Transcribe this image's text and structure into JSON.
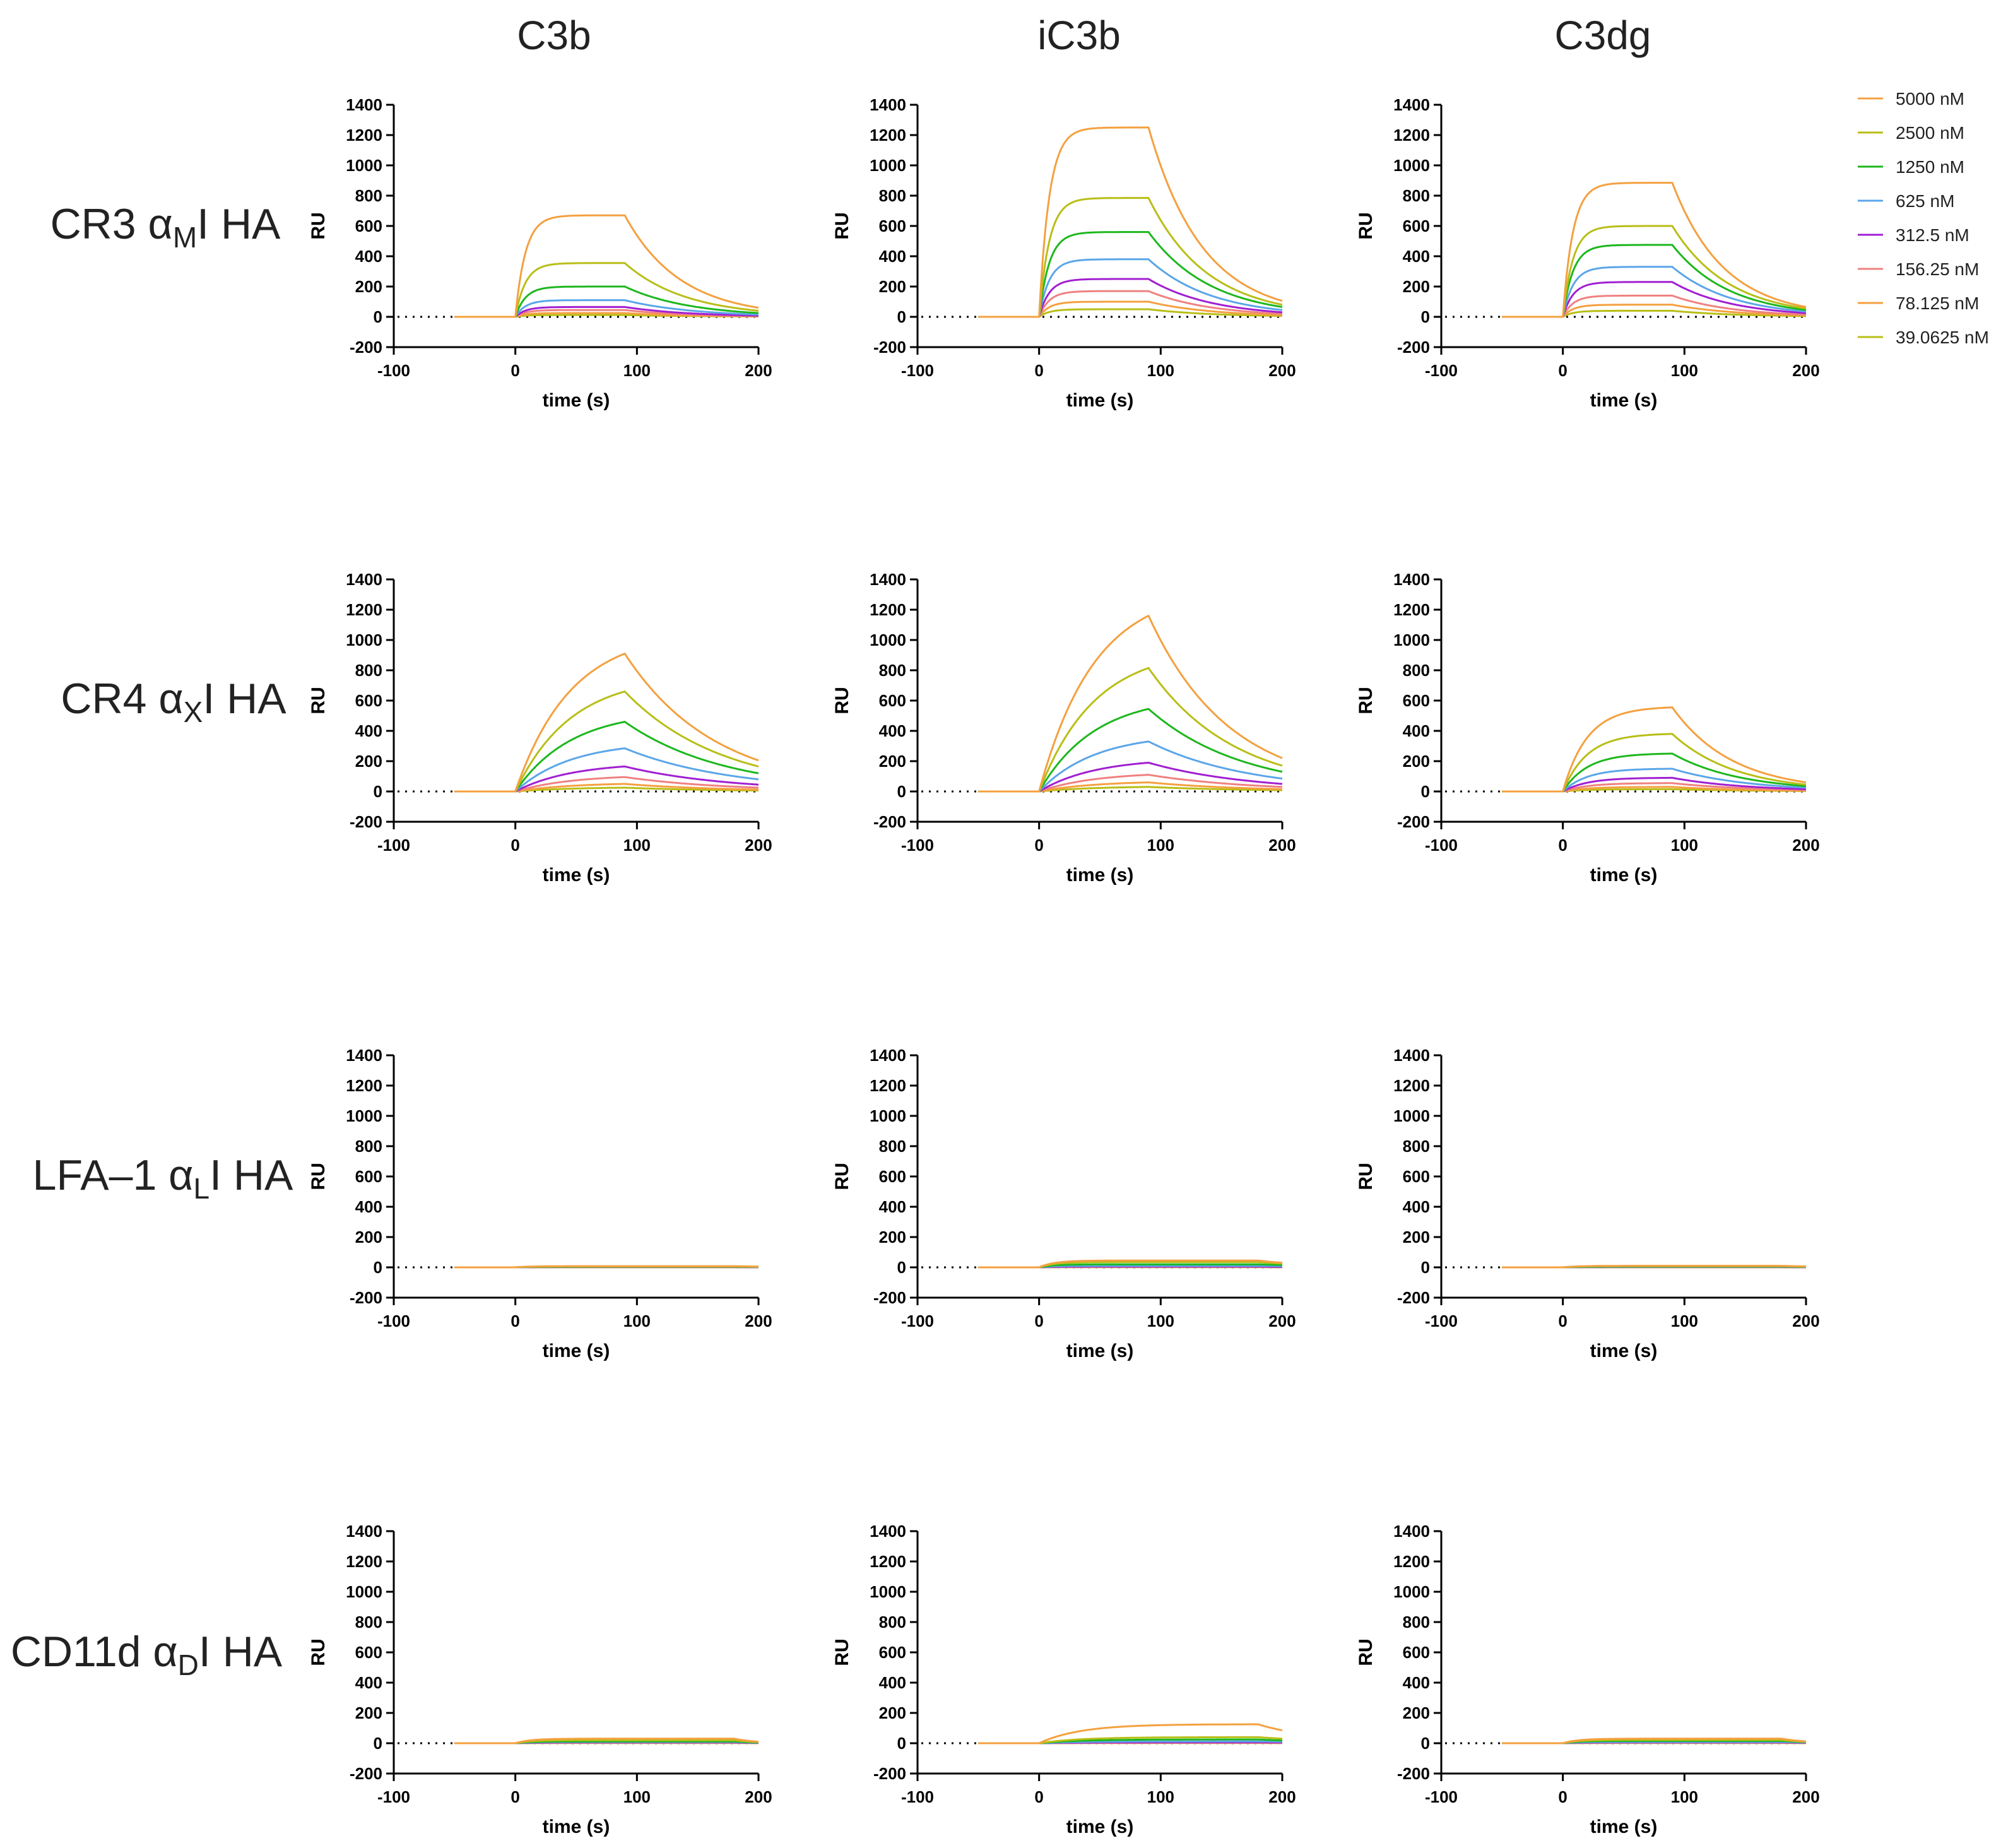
{
  "figure": {
    "col_titles": [
      "C3b",
      "iC3b",
      "C3dg"
    ],
    "row_labels": [
      {
        "prefix": "CR3 ",
        "alpha": "α",
        "sub": "M",
        "suffix": "I HA"
      },
      {
        "prefix": "CR4 ",
        "alpha": "α",
        "sub": "X",
        "suffix": "I HA"
      },
      {
        "prefix": "LFA–1 ",
        "alpha": "α",
        "sub": "L",
        "suffix": "I HA"
      },
      {
        "prefix": "CD11d ",
        "alpha": "α",
        "sub": "D",
        "suffix": "I HA"
      }
    ],
    "legend": [
      {
        "label": "5000 nM",
        "color": "#F4A03F"
      },
      {
        "label": "2500 nM",
        "color": "#B8BE16"
      },
      {
        "label": "1250 nM",
        "color": "#1DB71D"
      },
      {
        "label": "625 nM",
        "color": "#5AA6E8"
      },
      {
        "label": "312.5 nM",
        "color": "#A11FD1"
      },
      {
        "label": "156.25 nM",
        "color": "#F08080"
      },
      {
        "label": "78.125 nM",
        "color": "#F4A03F"
      },
      {
        "label": "39.0625 nM",
        "color": "#B8BE16"
      }
    ]
  },
  "chart_data": {
    "type": "line",
    "xlabel": "time (s)",
    "ylabel": "RU",
    "xlim": [
      -100,
      200
    ],
    "ylim": [
      -200,
      1400
    ],
    "xticks": [
      -100,
      0,
      100,
      200
    ],
    "yticks": [
      -200,
      0,
      200,
      400,
      600,
      800,
      1000,
      1200,
      1400
    ],
    "baseline_y": 0,
    "injection_start_s": 0,
    "injection_end_s": 90,
    "data_start_s": -50,
    "series_names": [
      "5000 nM",
      "2500 nM",
      "1250 nM",
      "625 nM",
      "312.5 nM",
      "156.25 nM",
      "78.125 nM",
      "39.0625 nM"
    ],
    "panels": [
      {
        "row": "CR3 αMI HA",
        "col": "C3b",
        "peak_at_90s": [
          670,
          355,
          200,
          110,
          65,
          45,
          25,
          12
        ],
        "end_at_200s": [
          60,
          40,
          25,
          15,
          8,
          5,
          3,
          2
        ],
        "kinetics": "fast"
      },
      {
        "row": "CR3 αMI HA",
        "col": "iC3b",
        "peak_at_90s": [
          1250,
          785,
          560,
          380,
          250,
          170,
          100,
          50
        ],
        "end_at_200s": [
          105,
          80,
          65,
          45,
          30,
          20,
          12,
          6
        ],
        "kinetics": "fast"
      },
      {
        "row": "CR3 αMI HA",
        "col": "C3dg",
        "peak_at_90s": [
          885,
          600,
          475,
          330,
          230,
          140,
          80,
          40
        ],
        "end_at_200s": [
          65,
          55,
          45,
          35,
          25,
          15,
          10,
          5
        ],
        "kinetics": "fast"
      },
      {
        "row": "CR4 αXI HA",
        "col": "C3b",
        "peak_at_90s": [
          910,
          660,
          460,
          285,
          165,
          95,
          50,
          25
        ],
        "end_at_200s": [
          205,
          165,
          120,
          80,
          45,
          25,
          12,
          6
        ],
        "kinetics": "slow"
      },
      {
        "row": "CR4 αXI HA",
        "col": "iC3b",
        "peak_at_90s": [
          1160,
          815,
          545,
          330,
          190,
          110,
          60,
          30
        ],
        "end_at_200s": [
          220,
          170,
          130,
          85,
          50,
          30,
          15,
          8
        ],
        "kinetics": "slow"
      },
      {
        "row": "CR4 αXI HA",
        "col": "C3dg",
        "peak_at_90s": [
          555,
          380,
          250,
          150,
          90,
          55,
          30,
          15
        ],
        "end_at_200s": [
          60,
          45,
          35,
          25,
          15,
          10,
          5,
          3
        ],
        "kinetics": "medium"
      },
      {
        "row": "LFA–1 αLI HA",
        "col": "C3b",
        "peak_at_90s": [
          8,
          6,
          4,
          3,
          2,
          1,
          1,
          0
        ],
        "end_at_200s": [
          5,
          4,
          3,
          2,
          1,
          1,
          0,
          0
        ],
        "kinetics": "flat"
      },
      {
        "row": "LFA–1 αLI HA",
        "col": "iC3b",
        "peak_at_90s": [
          45,
          35,
          20,
          10,
          5,
          3,
          2,
          1
        ],
        "end_at_200s": [
          30,
          25,
          15,
          8,
          3,
          2,
          1,
          0
        ],
        "kinetics": "flat"
      },
      {
        "row": "LFA–1 αLI HA",
        "col": "C3dg",
        "peak_at_90s": [
          10,
          8,
          5,
          3,
          2,
          1,
          1,
          0
        ],
        "end_at_200s": [
          6,
          5,
          3,
          2,
          1,
          1,
          0,
          0
        ],
        "kinetics": "flat"
      },
      {
        "row": "CD11d αDI HA",
        "col": "C3b",
        "peak_at_90s": [
          30,
          20,
          12,
          8,
          5,
          3,
          2,
          1
        ],
        "end_at_200s": [
          10,
          8,
          5,
          3,
          2,
          1,
          1,
          0
        ],
        "kinetics": "flat"
      },
      {
        "row": "CD11d αDI HA",
        "col": "iC3b",
        "peak_at_90s": [
          125,
          40,
          25,
          12,
          6,
          3,
          2,
          1
        ],
        "end_at_200s": [
          85,
          30,
          18,
          10,
          5,
          2,
          1,
          0
        ],
        "kinetics": "slow_long"
      },
      {
        "row": "CD11d αDI HA",
        "col": "C3dg",
        "peak_at_90s": [
          30,
          22,
          15,
          8,
          5,
          3,
          2,
          1
        ],
        "end_at_200s": [
          12,
          10,
          8,
          5,
          3,
          2,
          1,
          0
        ],
        "kinetics": "flat"
      }
    ]
  }
}
